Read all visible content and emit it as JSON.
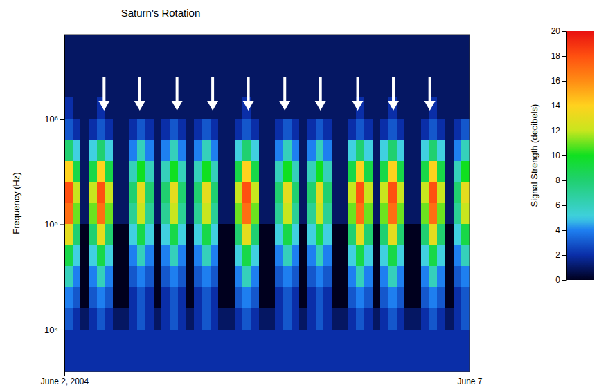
{
  "chart_data": {
    "type": "heatmap",
    "title": "Saturn's Rotation",
    "y_label": "Frequency (Hz)",
    "log": "y",
    "xlim": [
      2,
      7
    ],
    "xticks": [
      {
        "value": 2,
        "label": "June 2, 2004"
      },
      {
        "value": 7,
        "label": "June 7"
      }
    ],
    "ylim": [
      3981,
      6309573
    ],
    "yticks": [
      {
        "value": 10000,
        "label": "10⁴"
      },
      {
        "value": 100000,
        "label": "10⁵"
      },
      {
        "value": 1000000,
        "label": "10⁶"
      }
    ],
    "x_bins": [
      2,
      2.1,
      2.2,
      2.3,
      2.4,
      2.5,
      2.6,
      2.7,
      2.8,
      2.9,
      3,
      3.1,
      3.2,
      3.3,
      3.4,
      3.5,
      3.6,
      3.7,
      3.8,
      3.9,
      4,
      4.1,
      4.2,
      4.3,
      4.4,
      4.5,
      4.6,
      4.7,
      4.8,
      4.9,
      5,
      5.1,
      5.2,
      5.3,
      5.4,
      5.5,
      5.6,
      5.7,
      5.8,
      5.9,
      6,
      6.1,
      6.2,
      6.3,
      6.4,
      6.5,
      6.6,
      6.7,
      6.8,
      6.9,
      7
    ],
    "y_bins": [
      3981,
      6310,
      10000,
      15849,
      25119,
      39811,
      63096,
      100000,
      158489,
      251189,
      398107,
      630957,
      1000000,
      1584893,
      2511886,
      3981072,
      6309573
    ],
    "z": [
      [
        2,
        2,
        2,
        2,
        2,
        2,
        2,
        2,
        2,
        2,
        2,
        2,
        2,
        2,
        2,
        2,
        2,
        2,
        2,
        2,
        2,
        2,
        2,
        2,
        2,
        2,
        2,
        2,
        2,
        2,
        2,
        2,
        2,
        2,
        2,
        2,
        2,
        2,
        2,
        2,
        2,
        2,
        2,
        2,
        2,
        2,
        2,
        2,
        2,
        2
      ],
      [
        2,
        2,
        2,
        2,
        2,
        2,
        2,
        2,
        2,
        2,
        2,
        2,
        2,
        2,
        2,
        2,
        2,
        2,
        2,
        2,
        2,
        2,
        2,
        2,
        2,
        2,
        2,
        2,
        2,
        2,
        2,
        2,
        2,
        2,
        2,
        2,
        2,
        2,
        2,
        2,
        2,
        2,
        2,
        2,
        2,
        2,
        2,
        2,
        2,
        2
      ],
      [
        3,
        2,
        1,
        2,
        3,
        2,
        1,
        1,
        2,
        3,
        2,
        1,
        2,
        3,
        2,
        1,
        2,
        3,
        2,
        1,
        1,
        2,
        3,
        2,
        1,
        1,
        2,
        3,
        2,
        1,
        2,
        3,
        2,
        1,
        1,
        2,
        3,
        2,
        1,
        2,
        3,
        2,
        1,
        1,
        2,
        3,
        2,
        1,
        2,
        3
      ],
      [
        4,
        3,
        0,
        3,
        4,
        3,
        0,
        0,
        2,
        3,
        2,
        0,
        2,
        3,
        2,
        0,
        2,
        3,
        2,
        0,
        0,
        3,
        4,
        3,
        0,
        0,
        2,
        3,
        2,
        0,
        2,
        3,
        2,
        0,
        0,
        3,
        4,
        3,
        0,
        3,
        4,
        3,
        0,
        0,
        3,
        4,
        3,
        0,
        2,
        3
      ],
      [
        6,
        4,
        0,
        4,
        6,
        4,
        0,
        0,
        3,
        4,
        3,
        0,
        3,
        4,
        3,
        0,
        3,
        4,
        3,
        0,
        0,
        4,
        6,
        4,
        0,
        0,
        3,
        4,
        3,
        0,
        3,
        4,
        3,
        0,
        0,
        4,
        6,
        4,
        0,
        4,
        6,
        4,
        0,
        0,
        4,
        6,
        4,
        0,
        3,
        4
      ],
      [
        9,
        5,
        0,
        5,
        9,
        5,
        0,
        0,
        4,
        6,
        4,
        0,
        4,
        6,
        4,
        0,
        4,
        6,
        4,
        0,
        0,
        5,
        9,
        5,
        0,
        0,
        4,
        6,
        4,
        0,
        4,
        6,
        4,
        0,
        0,
        5,
        9,
        5,
        0,
        5,
        9,
        5,
        0,
        0,
        5,
        9,
        5,
        0,
        4,
        6
      ],
      [
        13,
        8,
        0,
        8,
        13,
        8,
        0,
        0,
        5,
        9,
        5,
        0,
        5,
        9,
        5,
        0,
        5,
        9,
        5,
        0,
        0,
        8,
        13,
        8,
        0,
        0,
        5,
        9,
        5,
        0,
        5,
        9,
        5,
        0,
        0,
        8,
        13,
        8,
        0,
        8,
        13,
        8,
        0,
        0,
        8,
        13,
        8,
        0,
        5,
        9
      ],
      [
        17,
        11,
        1,
        11,
        17,
        11,
        1,
        1,
        7,
        12,
        7,
        1,
        7,
        12,
        7,
        1,
        7,
        12,
        7,
        1,
        1,
        11,
        17,
        11,
        1,
        1,
        7,
        12,
        7,
        1,
        7,
        12,
        7,
        1,
        1,
        11,
        17,
        11,
        1,
        11,
        17,
        11,
        1,
        1,
        11,
        17,
        11,
        1,
        7,
        12
      ],
      [
        18,
        12,
        1,
        12,
        18,
        12,
        1,
        1,
        8,
        13,
        8,
        1,
        8,
        13,
        8,
        1,
        8,
        13,
        8,
        1,
        1,
        12,
        18,
        12,
        1,
        1,
        8,
        13,
        8,
        1,
        8,
        13,
        8,
        1,
        1,
        12,
        18,
        12,
        1,
        12,
        18,
        12,
        1,
        1,
        12,
        18,
        12,
        1,
        8,
        13
      ],
      [
        14,
        9,
        1,
        9,
        14,
        9,
        1,
        1,
        6,
        10,
        6,
        1,
        6,
        10,
        6,
        1,
        6,
        10,
        6,
        1,
        1,
        9,
        14,
        9,
        1,
        1,
        6,
        10,
        6,
        1,
        6,
        10,
        6,
        1,
        1,
        9,
        14,
        9,
        1,
        9,
        14,
        9,
        1,
        1,
        9,
        14,
        9,
        1,
        6,
        10
      ],
      [
        8,
        5,
        1,
        5,
        8,
        5,
        1,
        1,
        4,
        6,
        4,
        1,
        4,
        6,
        4,
        1,
        4,
        6,
        4,
        1,
        1,
        5,
        8,
        5,
        1,
        1,
        4,
        6,
        4,
        1,
        4,
        6,
        4,
        1,
        1,
        5,
        8,
        5,
        1,
        5,
        8,
        5,
        1,
        1,
        5,
        8,
        5,
        1,
        4,
        6
      ],
      [
        3,
        2,
        1,
        2,
        3,
        2,
        1,
        1,
        2,
        3,
        2,
        1,
        2,
        3,
        2,
        1,
        2,
        3,
        2,
        1,
        1,
        2,
        3,
        2,
        1,
        1,
        2,
        3,
        2,
        1,
        2,
        3,
        2,
        1,
        1,
        2,
        3,
        2,
        1,
        2,
        3,
        2,
        1,
        1,
        2,
        3,
        2,
        1,
        2,
        3
      ],
      [
        2,
        1,
        1,
        1,
        2,
        1,
        1,
        1,
        1,
        1,
        1,
        1,
        1,
        1,
        1,
        1,
        1,
        1,
        1,
        1,
        1,
        1,
        2,
        1,
        1,
        1,
        1,
        1,
        1,
        1,
        1,
        1,
        1,
        1,
        1,
        1,
        2,
        1,
        1,
        1,
        2,
        1,
        1,
        1,
        1,
        2,
        1,
        1,
        1,
        1
      ],
      [
        1,
        1,
        1,
        1,
        1,
        1,
        1,
        1,
        1,
        1,
        1,
        1,
        1,
        1,
        1,
        1,
        1,
        1,
        1,
        1,
        1,
        1,
        1,
        1,
        1,
        1,
        1,
        1,
        1,
        1,
        1,
        1,
        1,
        1,
        1,
        1,
        1,
        1,
        1,
        1,
        1,
        1,
        1,
        1,
        1,
        1,
        1,
        1,
        1,
        1
      ],
      [
        1,
        1,
        1,
        1,
        1,
        1,
        1,
        1,
        1,
        1,
        1,
        1,
        1,
        1,
        1,
        1,
        1,
        1,
        1,
        1,
        1,
        1,
        1,
        1,
        1,
        1,
        1,
        1,
        1,
        1,
        1,
        1,
        1,
        1,
        1,
        1,
        1,
        1,
        1,
        1,
        1,
        1,
        1,
        1,
        1,
        1,
        1,
        1,
        1,
        1
      ],
      [
        1,
        1,
        1,
        1,
        1,
        1,
        1,
        1,
        1,
        1,
        1,
        1,
        1,
        1,
        1,
        1,
        1,
        1,
        1,
        1,
        1,
        1,
        1,
        1,
        1,
        1,
        1,
        1,
        1,
        1,
        1,
        1,
        1,
        1,
        1,
        1,
        1,
        1,
        1,
        1,
        1,
        1,
        1,
        1,
        1,
        1,
        1,
        1,
        1,
        1
      ]
    ],
    "arrows": [
      2.49,
      2.93,
      3.39,
      3.83,
      4.27,
      4.72,
      5.16,
      5.62,
      6.06,
      6.51
    ],
    "colorbar_label": "Signal Strength (decibels)",
    "colorbar_range": [
      0,
      20
    ],
    "colorbar_ticks": [
      0,
      2,
      4,
      6,
      8,
      10,
      12,
      14,
      16,
      18,
      20
    ]
  }
}
